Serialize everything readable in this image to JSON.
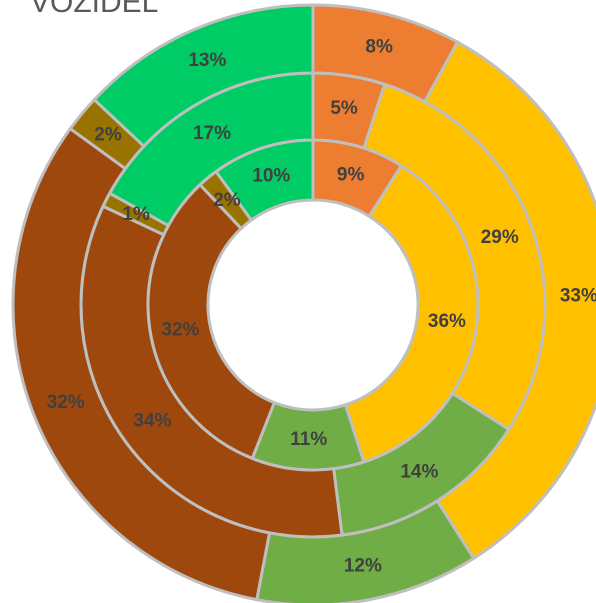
{
  "chart_data": {
    "type": "donut",
    "title": "VOZIDEL",
    "colors": [
      "#ED7D31",
      "#FFC000",
      "#70AD47",
      "#9E480E",
      "#997300",
      "#00CC66"
    ],
    "series": [
      {
        "values": [
          9,
          36,
          11,
          32,
          2,
          10
        ],
        "value_labels": [
          "9%",
          "36%",
          "11%",
          "32%",
          "2%",
          "10%"
        ]
      },
      {
        "values": [
          5,
          29,
          14,
          34,
          1,
          17
        ],
        "value_labels": [
          "5%",
          "29%",
          "14%",
          "34%",
          "1%",
          "17%"
        ]
      },
      {
        "values": [
          8,
          33,
          12,
          32,
          2,
          13
        ],
        "value_labels": [
          "8%",
          "33%",
          "12%",
          "32%",
          "2%",
          "13%"
        ]
      }
    ]
  }
}
